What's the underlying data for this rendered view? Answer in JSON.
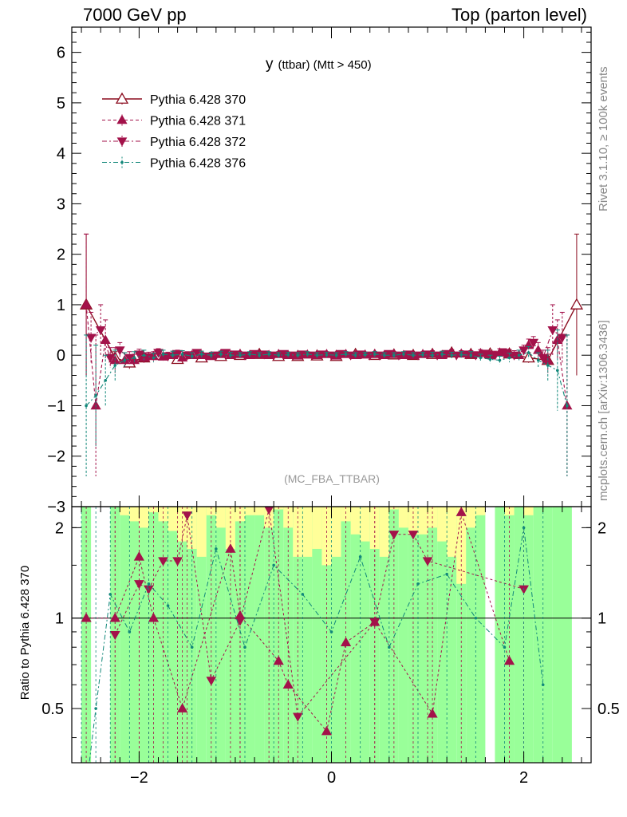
{
  "header": {
    "left": "7000 GeV pp",
    "right": "Top (parton level)"
  },
  "side_text": {
    "rivet": "Rivet 3.1.10, ≥ 100k events",
    "mcplots": "mcplots.cern.ch [arXiv:1306.3436]"
  },
  "chart_data": [
    {
      "type": "line",
      "panel": "main",
      "title": "y (ttbar) (Mtt > 450)",
      "title_main": "y",
      "title_sub": "(ttbar) (Mtt > 450)",
      "watermark": "(MC_FBA_TTBAR)",
      "xlim": [
        -2.7,
        2.7
      ],
      "ylim": [
        -3,
        6.5
      ],
      "y_ticks": [
        "−2",
        "−1",
        "0",
        "1",
        "2",
        "3",
        "4",
        "5",
        "6"
      ],
      "x_ticks": [
        "−2",
        "0",
        "2"
      ],
      "legend_position": "top-left",
      "colors": {
        "pythia_370": "#8b0b1e",
        "pythia_371": "#a3124a",
        "pythia_372": "#a3124a",
        "pythia_376": "#12887a"
      },
      "series": [
        {
          "name": "Pythia 6.428 370",
          "marker": "open-triangle-up",
          "style": "solid",
          "x": [
            -2.55,
            -2.25,
            -2.1,
            -1.95,
            -1.8,
            -1.6,
            -1.35,
            -1.15,
            -0.95,
            -0.75,
            -0.55,
            -0.35,
            -0.15,
            0.05,
            0.25,
            0.45,
            0.65,
            0.85,
            1.05,
            1.25,
            1.45,
            1.65,
            1.85,
            2.05,
            2.25,
            2.55
          ],
          "values": [
            1.0,
            -0.05,
            -0.15,
            -0.05,
            0.0,
            -0.08,
            -0.05,
            -0.02,
            0.0,
            0.02,
            -0.02,
            -0.02,
            -0.01,
            -0.02,
            0.02,
            0.0,
            0.01,
            0.0,
            0.02,
            0.05,
            0.02,
            0.03,
            0.03,
            -0.05,
            -0.1,
            1.0
          ],
          "errors": [
            1.4,
            0.12,
            0.12,
            0.08,
            0.08,
            0.07,
            0.06,
            0.06,
            0.05,
            0.05,
            0.05,
            0.05,
            0.05,
            0.05,
            0.05,
            0.05,
            0.05,
            0.05,
            0.05,
            0.06,
            0.06,
            0.07,
            0.08,
            0.1,
            0.12,
            1.4
          ]
        },
        {
          "name": "Pythia 6.428 371",
          "marker": "filled-triangle-up",
          "style": "dashed",
          "x": [
            -2.55,
            -2.45,
            -2.35,
            -2.25,
            -2.15,
            -2.05,
            -1.95,
            -1.85,
            -1.75,
            -1.65,
            -1.55,
            -1.45,
            -1.35,
            -1.25,
            -1.15,
            -1.05,
            -0.95,
            -0.85,
            -0.75,
            -0.65,
            -0.55,
            -0.45,
            -0.35,
            -0.25,
            -0.15,
            -0.05,
            0.05,
            0.15,
            0.25,
            0.35,
            0.45,
            0.55,
            0.65,
            0.75,
            0.85,
            0.95,
            1.05,
            1.15,
            1.25,
            1.35,
            1.45,
            1.55,
            1.65,
            1.75,
            1.85,
            1.95,
            2.05,
            2.15,
            2.25,
            2.35,
            2.45
          ],
          "values": [
            1.0,
            -1.0,
            0.3,
            -0.1,
            -0.1,
            -0.1,
            -0.05,
            -0.02,
            -0.03,
            0.0,
            -0.05,
            0.0,
            0.0,
            -0.02,
            0.02,
            0.0,
            0.02,
            0.0,
            0.01,
            0.0,
            0.02,
            0.0,
            -0.01,
            0.01,
            0.0,
            0.02,
            -0.01,
            0.02,
            0.0,
            0.01,
            0.02,
            0.0,
            0.02,
            0.0,
            0.0,
            0.02,
            0.03,
            0.0,
            0.05,
            0.03,
            0.02,
            0.04,
            0.0,
            0.05,
            0.02,
            0.0,
            0.2,
            0.1,
            -0.1,
            0.3,
            -1.0
          ],
          "errors": [
            1.4,
            1.4,
            0.4,
            0.25,
            0.15,
            0.12,
            0.1,
            0.09,
            0.08,
            0.08,
            0.07,
            0.07,
            0.06,
            0.06,
            0.06,
            0.06,
            0.05,
            0.05,
            0.05,
            0.05,
            0.05,
            0.05,
            0.05,
            0.05,
            0.05,
            0.05,
            0.05,
            0.05,
            0.05,
            0.05,
            0.05,
            0.05,
            0.05,
            0.05,
            0.05,
            0.05,
            0.06,
            0.06,
            0.06,
            0.06,
            0.07,
            0.07,
            0.08,
            0.08,
            0.09,
            0.1,
            0.12,
            0.15,
            0.25,
            0.4,
            1.4
          ]
        },
        {
          "name": "Pythia 6.428 372",
          "marker": "filled-triangle-down",
          "style": "dash-dot",
          "x": [
            -2.5,
            -2.4,
            -2.3,
            -2.2,
            -2.1,
            -2.0,
            -1.9,
            -1.8,
            -1.7,
            -1.6,
            -1.5,
            -1.4,
            -1.3,
            -1.2,
            -1.1,
            -1.0,
            -0.9,
            -0.8,
            -0.7,
            -0.6,
            -0.5,
            -0.4,
            -0.3,
            -0.2,
            -0.1,
            0.0,
            0.1,
            0.2,
            0.3,
            0.4,
            0.5,
            0.6,
            0.7,
            0.8,
            0.9,
            1.0,
            1.1,
            1.2,
            1.3,
            1.4,
            1.5,
            1.6,
            1.7,
            1.8,
            1.9,
            2.0,
            2.1,
            2.2,
            2.3,
            2.4
          ],
          "values": [
            0.35,
            0.5,
            -0.05,
            0.1,
            -0.05,
            0.02,
            -0.03,
            0.05,
            -0.02,
            0.03,
            0.0,
            0.05,
            -0.02,
            0.0,
            0.05,
            0.02,
            0.0,
            0.03,
            0.02,
            0.0,
            0.03,
            0.0,
            0.02,
            0.0,
            0.02,
            0.0,
            0.03,
            0.0,
            0.02,
            0.0,
            0.0,
            0.03,
            0.0,
            0.02,
            0.0,
            0.02,
            0.0,
            0.03,
            0.0,
            0.02,
            0.0,
            0.03,
            0.0,
            0.05,
            0.0,
            0.1,
            0.25,
            -0.05,
            0.5,
            0.35
          ],
          "errors": [
            0.5,
            0.5,
            0.2,
            0.15,
            0.12,
            0.1,
            0.09,
            0.08,
            0.08,
            0.07,
            0.07,
            0.06,
            0.06,
            0.06,
            0.06,
            0.05,
            0.05,
            0.05,
            0.05,
            0.05,
            0.05,
            0.05,
            0.05,
            0.05,
            0.05,
            0.05,
            0.05,
            0.05,
            0.05,
            0.05,
            0.05,
            0.05,
            0.05,
            0.05,
            0.05,
            0.05,
            0.06,
            0.06,
            0.06,
            0.06,
            0.07,
            0.07,
            0.08,
            0.08,
            0.09,
            0.1,
            0.12,
            0.15,
            0.5,
            0.5
          ]
        },
        {
          "name": "Pythia 6.428 376",
          "marker": "dot",
          "style": "dash-dot",
          "x": [
            -2.55,
            -2.45,
            -2.35,
            -2.25,
            -2.15,
            -2.05,
            -1.95,
            -1.85,
            -1.75,
            -1.65,
            -1.55,
            -1.45,
            -1.35,
            -1.25,
            -1.15,
            -1.05,
            -0.95,
            -0.85,
            -0.75,
            -0.65,
            -0.55,
            -0.45,
            -0.35,
            -0.25,
            -0.15,
            -0.05,
            0.05,
            0.15,
            0.25,
            0.35,
            0.45,
            0.55,
            0.65,
            0.75,
            0.85,
            0.95,
            1.05,
            1.15,
            1.25,
            1.35,
            1.45,
            1.55,
            1.65,
            1.75,
            1.85,
            1.95,
            2.05,
            2.15,
            2.25,
            2.35,
            2.45
          ],
          "values": [
            -1.0,
            -0.8,
            -0.5,
            -0.2,
            -0.1,
            -0.05,
            0.0,
            -0.05,
            0.02,
            0.0,
            0.02,
            -0.02,
            0.02,
            0.0,
            0.02,
            0.0,
            0.0,
            0.02,
            0.0,
            0.02,
            0.0,
            0.01,
            0.0,
            0.02,
            0.0,
            0.01,
            0.0,
            0.02,
            0.0,
            0.01,
            0.02,
            0.0,
            0.0,
            0.02,
            0.0,
            0.01,
            0.0,
            0.02,
            0.0,
            0.01,
            0.0,
            -0.05,
            -0.08,
            -0.1,
            -0.05,
            0.0,
            0.05,
            -0.1,
            -0.2,
            -0.3,
            -1.0
          ],
          "errors": [
            1.4,
            1.0,
            0.5,
            0.3,
            0.15,
            0.12,
            0.1,
            0.09,
            0.08,
            0.08,
            0.07,
            0.07,
            0.06,
            0.06,
            0.06,
            0.06,
            0.05,
            0.05,
            0.05,
            0.05,
            0.05,
            0.05,
            0.05,
            0.05,
            0.05,
            0.05,
            0.05,
            0.05,
            0.05,
            0.05,
            0.05,
            0.05,
            0.05,
            0.05,
            0.05,
            0.05,
            0.06,
            0.06,
            0.06,
            0.06,
            0.07,
            0.07,
            0.08,
            0.08,
            0.09,
            0.1,
            0.12,
            0.15,
            0.3,
            0.8,
            1.4
          ]
        }
      ]
    },
    {
      "type": "line",
      "panel": "ratio",
      "ylabel": "Ratio to Pythia 6.428 370",
      "xlim": [
        -2.7,
        2.7
      ],
      "ylim": [
        0.33,
        2.35
      ],
      "y_log": true,
      "y_ticks": [
        {
          "value": 0.5,
          "label": "0.5"
        },
        {
          "value": 1,
          "label": "1"
        },
        {
          "value": 2,
          "label": "2"
        }
      ],
      "x_ticks": [
        "−2",
        "0",
        "2"
      ],
      "reference_line": 1,
      "band_colors": {
        "inner": "#ffff99",
        "outer": "#99ff99"
      },
      "bands": {
        "x_edges": [
          -2.6,
          -2.5,
          -2.3,
          -2.2,
          -2.1,
          -2.0,
          -1.9,
          -1.8,
          -1.7,
          -1.6,
          -1.5,
          -1.4,
          -1.3,
          -1.2,
          -1.1,
          -1.0,
          -0.9,
          -0.8,
          -0.7,
          -0.6,
          -0.5,
          -0.4,
          -0.3,
          -0.2,
          -0.1,
          0.0,
          0.1,
          0.2,
          0.3,
          0.4,
          0.5,
          0.6,
          0.7,
          0.8,
          0.9,
          1.0,
          1.1,
          1.2,
          1.3,
          1.4,
          1.5,
          1.6,
          1.7,
          1.8,
          1.9,
          2.0,
          2.1,
          2.2,
          2.3,
          2.5,
          2.6
        ],
        "inner_top": [
          2.35,
          0,
          2.35,
          2.2,
          2.1,
          2.0,
          2.25,
          2.1,
          1.95,
          1.8,
          1.7,
          1.6,
          2.2,
          2.0,
          1.7,
          2.1,
          2.2,
          2.2,
          2.0,
          2.3,
          2.0,
          1.6,
          1.6,
          1.7,
          1.5,
          1.6,
          2.1,
          1.9,
          1.8,
          1.7,
          1.6,
          2.3,
          2.0,
          1.9,
          1.9,
          2.0,
          1.8,
          1.6,
          1.3,
          2.0,
          2.2,
          0,
          2.35,
          2.2,
          2.35,
          2.2,
          2.35,
          2.35,
          2.35,
          0,
          2.35
        ],
        "inner_bottom": [
          0.33,
          0,
          0.33,
          0.33,
          0.33,
          0.33,
          0.33,
          0.33,
          0.33,
          0.33,
          0.33,
          0.33,
          0.33,
          0.33,
          0.33,
          0.33,
          0.33,
          0.33,
          0.33,
          0.33,
          0.33,
          0.33,
          0.33,
          0.33,
          0.33,
          0.33,
          0.33,
          0.33,
          0.33,
          0.33,
          0.33,
          0.33,
          0.33,
          0.33,
          0.33,
          0.33,
          0.33,
          0.33,
          0.33,
          0.33,
          0.33,
          0,
          0.33,
          0.33,
          0.33,
          0.33,
          0.33,
          0.33,
          0.33,
          0,
          0.33
        ],
        "outer_top": [
          2.35,
          0,
          2.35,
          2.35,
          2.35,
          2.35,
          2.35,
          2.35,
          2.35,
          2.35,
          2.35,
          2.35,
          2.35,
          2.35,
          2.35,
          2.35,
          2.35,
          2.35,
          2.35,
          2.35,
          2.35,
          2.35,
          2.35,
          2.35,
          2.35,
          2.35,
          2.35,
          2.35,
          2.35,
          2.35,
          2.35,
          2.35,
          2.35,
          2.35,
          2.35,
          2.35,
          2.35,
          2.35,
          2.35,
          2.35,
          2.35,
          0,
          2.35,
          2.35,
          2.35,
          2.35,
          2.35,
          2.35,
          2.35,
          0,
          2.35
        ]
      },
      "series": [
        {
          "name": "Pythia 6.428 371",
          "marker": "filled-triangle-up",
          "x": [
            -2.55,
            -2.25,
            -2.0,
            -1.85,
            -1.55,
            -1.05,
            -0.95,
            -0.55,
            -0.45,
            -0.05,
            0.15,
            0.45,
            1.05,
            1.35,
            1.85
          ],
          "values": [
            1.0,
            1.0,
            1.6,
            1.0,
            0.5,
            1.7,
            1.02,
            0.72,
            0.6,
            0.42,
            0.83,
            0.97,
            0.48,
            2.25,
            0.72
          ]
        },
        {
          "name": "Pythia 6.428 372",
          "marker": "filled-triangle-down",
          "x": [
            -2.25,
            -2.0,
            -1.9,
            -1.75,
            -1.6,
            -1.5,
            -1.25,
            -0.95,
            -0.65,
            -0.35,
            0.45,
            0.65,
            0.85,
            1.0,
            2.0
          ],
          "values": [
            0.88,
            1.3,
            1.25,
            1.55,
            1.55,
            2.2,
            0.62,
            0.98,
            2.3,
            0.47,
            0.97,
            1.9,
            1.9,
            1.55,
            1.25
          ]
        },
        {
          "name": "Pythia 6.428 376",
          "marker": "dot",
          "x": [
            -2.6,
            -2.45,
            -2.3,
            -2.1,
            -1.9,
            -1.7,
            -1.45,
            -1.2,
            -0.9,
            -0.6,
            -0.3,
            0.0,
            0.3,
            0.6,
            0.9,
            1.2,
            1.5,
            1.8,
            2.0,
            2.2
          ],
          "values": [
            0.2,
            0.5,
            1.2,
            0.9,
            1.3,
            1.1,
            0.8,
            1.7,
            0.8,
            1.5,
            1.2,
            0.9,
            1.6,
            0.8,
            1.3,
            1.4,
            1.0,
            0.8,
            2.0,
            0.6
          ]
        }
      ]
    }
  ]
}
